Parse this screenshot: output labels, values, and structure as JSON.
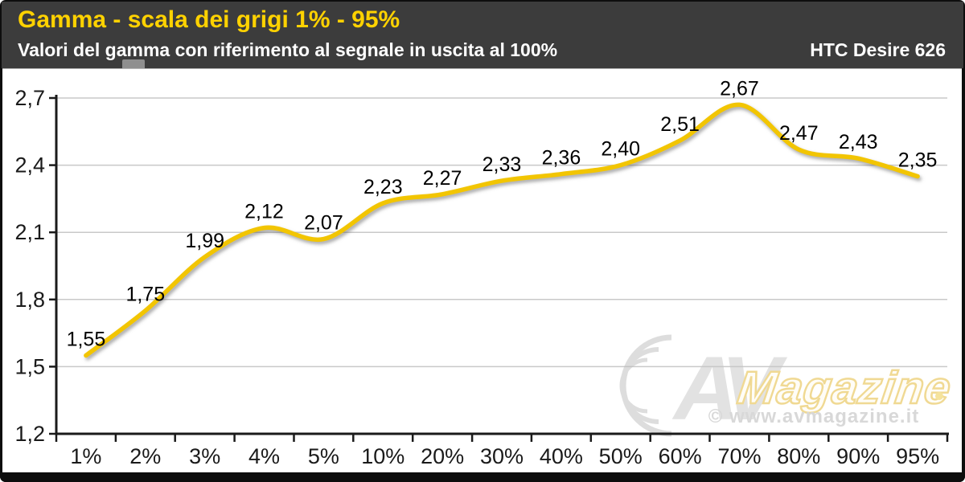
{
  "chart_data": {
    "type": "line",
    "title": "Gamma - scala dei grigi 1% - 95%",
    "subtitle": "Valori del gamma con riferimento al segnale in uscita al 100%",
    "device_label": "HTC Desire 626",
    "series_name": "Gamma",
    "categories": [
      "1%",
      "2%",
      "3%",
      "4%",
      "5%",
      "10%",
      "20%",
      "30%",
      "40%",
      "50%",
      "60%",
      "70%",
      "80%",
      "90%",
      "95%"
    ],
    "values": [
      1.55,
      1.75,
      1.99,
      2.12,
      2.07,
      2.23,
      2.27,
      2.33,
      2.36,
      2.4,
      2.51,
      2.67,
      2.47,
      2.43,
      2.35
    ],
    "value_labels": [
      "1,55",
      "1,75",
      "1,99",
      "2,12",
      "2,07",
      "2,23",
      "2,27",
      "2,33",
      "2,36",
      "2,40",
      "2,51",
      "2,67",
      "2,47",
      "2,43",
      "2,35"
    ],
    "xlabel": "",
    "ylabel": "",
    "ylim": [
      1.2,
      2.7
    ],
    "yticks": {
      "values": [
        1.2,
        1.5,
        1.8,
        2.1,
        2.4,
        2.7
      ],
      "labels": [
        "1,2",
        "1,5",
        "1,8",
        "2,1",
        "2,4",
        "2,7"
      ]
    },
    "grid": true,
    "legend": "none",
    "line_color": "#F2C502"
  },
  "watermark": {
    "logo": "AV",
    "word": "Magazine",
    "copyright": "© www.avmagazine.it"
  },
  "colors": {
    "header_bg": "#3C3C3C",
    "title": "#FFD200",
    "subtitle": "#FFFFFF",
    "line": "#F2C502",
    "grid": "#C9C9C9",
    "axis": "#1A1A1A",
    "label": "#000000"
  }
}
